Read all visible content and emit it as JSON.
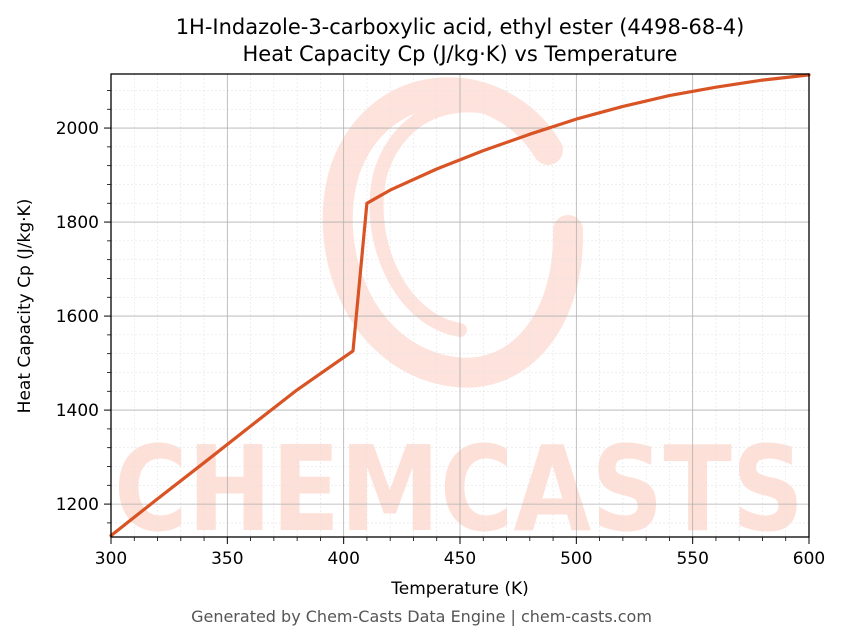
{
  "chart_data": {
    "type": "line",
    "title_line1": "1H-Indazole-3-carboxylic acid, ethyl ester (4498-68-4)",
    "title_line2": "Heat Capacity Cp (J/kg·K) vs Temperature",
    "xlabel": "Temperature (K)",
    "ylabel": "Heat Capacity Cp (J/kg·K)",
    "xlim": [
      300,
      600
    ],
    "ylim": [
      1130,
      2115
    ],
    "xticks": [
      300,
      350,
      400,
      450,
      500,
      550,
      600
    ],
    "yticks": [
      1200,
      1400,
      1600,
      1800,
      2000
    ],
    "grid": true,
    "series": [
      {
        "color": "#d95425",
        "x": [
          300,
          320,
          340,
          360,
          380,
          404,
          410,
          420,
          440,
          460,
          480,
          500,
          520,
          540,
          560,
          580,
          600
        ],
        "y": [
          1133,
          1211,
          1288,
          1366,
          1443,
          1526,
          1840,
          1868,
          1913,
          1952,
          1987,
          2019,
          2046,
          2069,
          2087,
          2102,
          2113
        ]
      }
    ]
  },
  "watermark": {
    "text": "CHEMCASTS",
    "color": "#fdd9d2"
  },
  "footer": "Generated by Chem-Casts Data Engine | chem-casts.com"
}
